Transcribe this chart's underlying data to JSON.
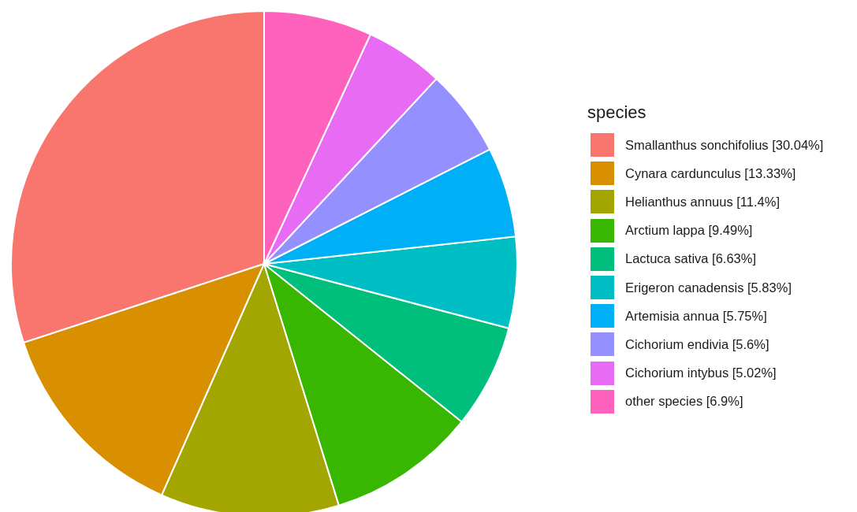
{
  "chart_data": {
    "type": "pie",
    "legend_title": "species",
    "legend": "right",
    "categories": [
      "Smallanthus sonchifolius [30.04%]",
      "Cynara cardunculus [13.33%]",
      "Helianthus annuus [11.4%]",
      "Arctium lappa [9.49%]",
      "Lactuca sativa [6.63%]",
      "Erigeron canadensis [5.83%]",
      "Artemisia annua [5.75%]",
      "Cichorium endivia [5.6%]",
      "Cichorium intybus [5.02%]",
      "other species [6.9%]"
    ],
    "values": [
      30.04,
      13.33,
      11.4,
      9.49,
      6.63,
      5.83,
      5.75,
      5.6,
      5.02,
      6.9
    ],
    "colors": [
      "#f8766d",
      "#d89000",
      "#a3a500",
      "#39b600",
      "#00bf7d",
      "#00bfc4",
      "#00b0f6",
      "#9590ff",
      "#e76bf3",
      "#ff62bc"
    ]
  }
}
